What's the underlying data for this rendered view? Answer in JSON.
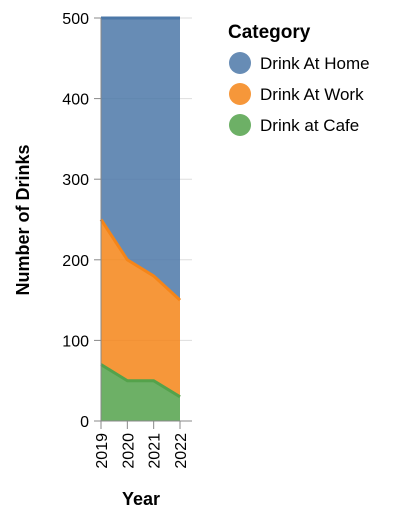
{
  "chart_data": {
    "type": "area",
    "stacked": true,
    "x": [
      "2019",
      "2020",
      "2021",
      "2022"
    ],
    "series": [
      {
        "name": "Drink at Cafe",
        "values": [
          70,
          50,
          50,
          30
        ],
        "color": "#54a24b"
      },
      {
        "name": "Drink At Work",
        "values": [
          180,
          150,
          130,
          120
        ],
        "color": "#f58518"
      },
      {
        "name": "Drink At Home",
        "values": [
          250,
          300,
          320,
          350
        ],
        "color": "#4c78a8"
      }
    ],
    "xlabel": "Year",
    "ylabel": "Number of Drinks",
    "ylim": [
      0,
      500
    ],
    "yticks": [
      "0",
      "100",
      "200",
      "300",
      "400",
      "500"
    ],
    "grid": true,
    "legend": {
      "title": "Category",
      "position": "right",
      "items": [
        {
          "label": "Drink At Home",
          "color": "#4c78a8"
        },
        {
          "label": "Drink At Work",
          "color": "#f58518"
        },
        {
          "label": "Drink at Cafe",
          "color": "#54a24b"
        }
      ]
    }
  }
}
